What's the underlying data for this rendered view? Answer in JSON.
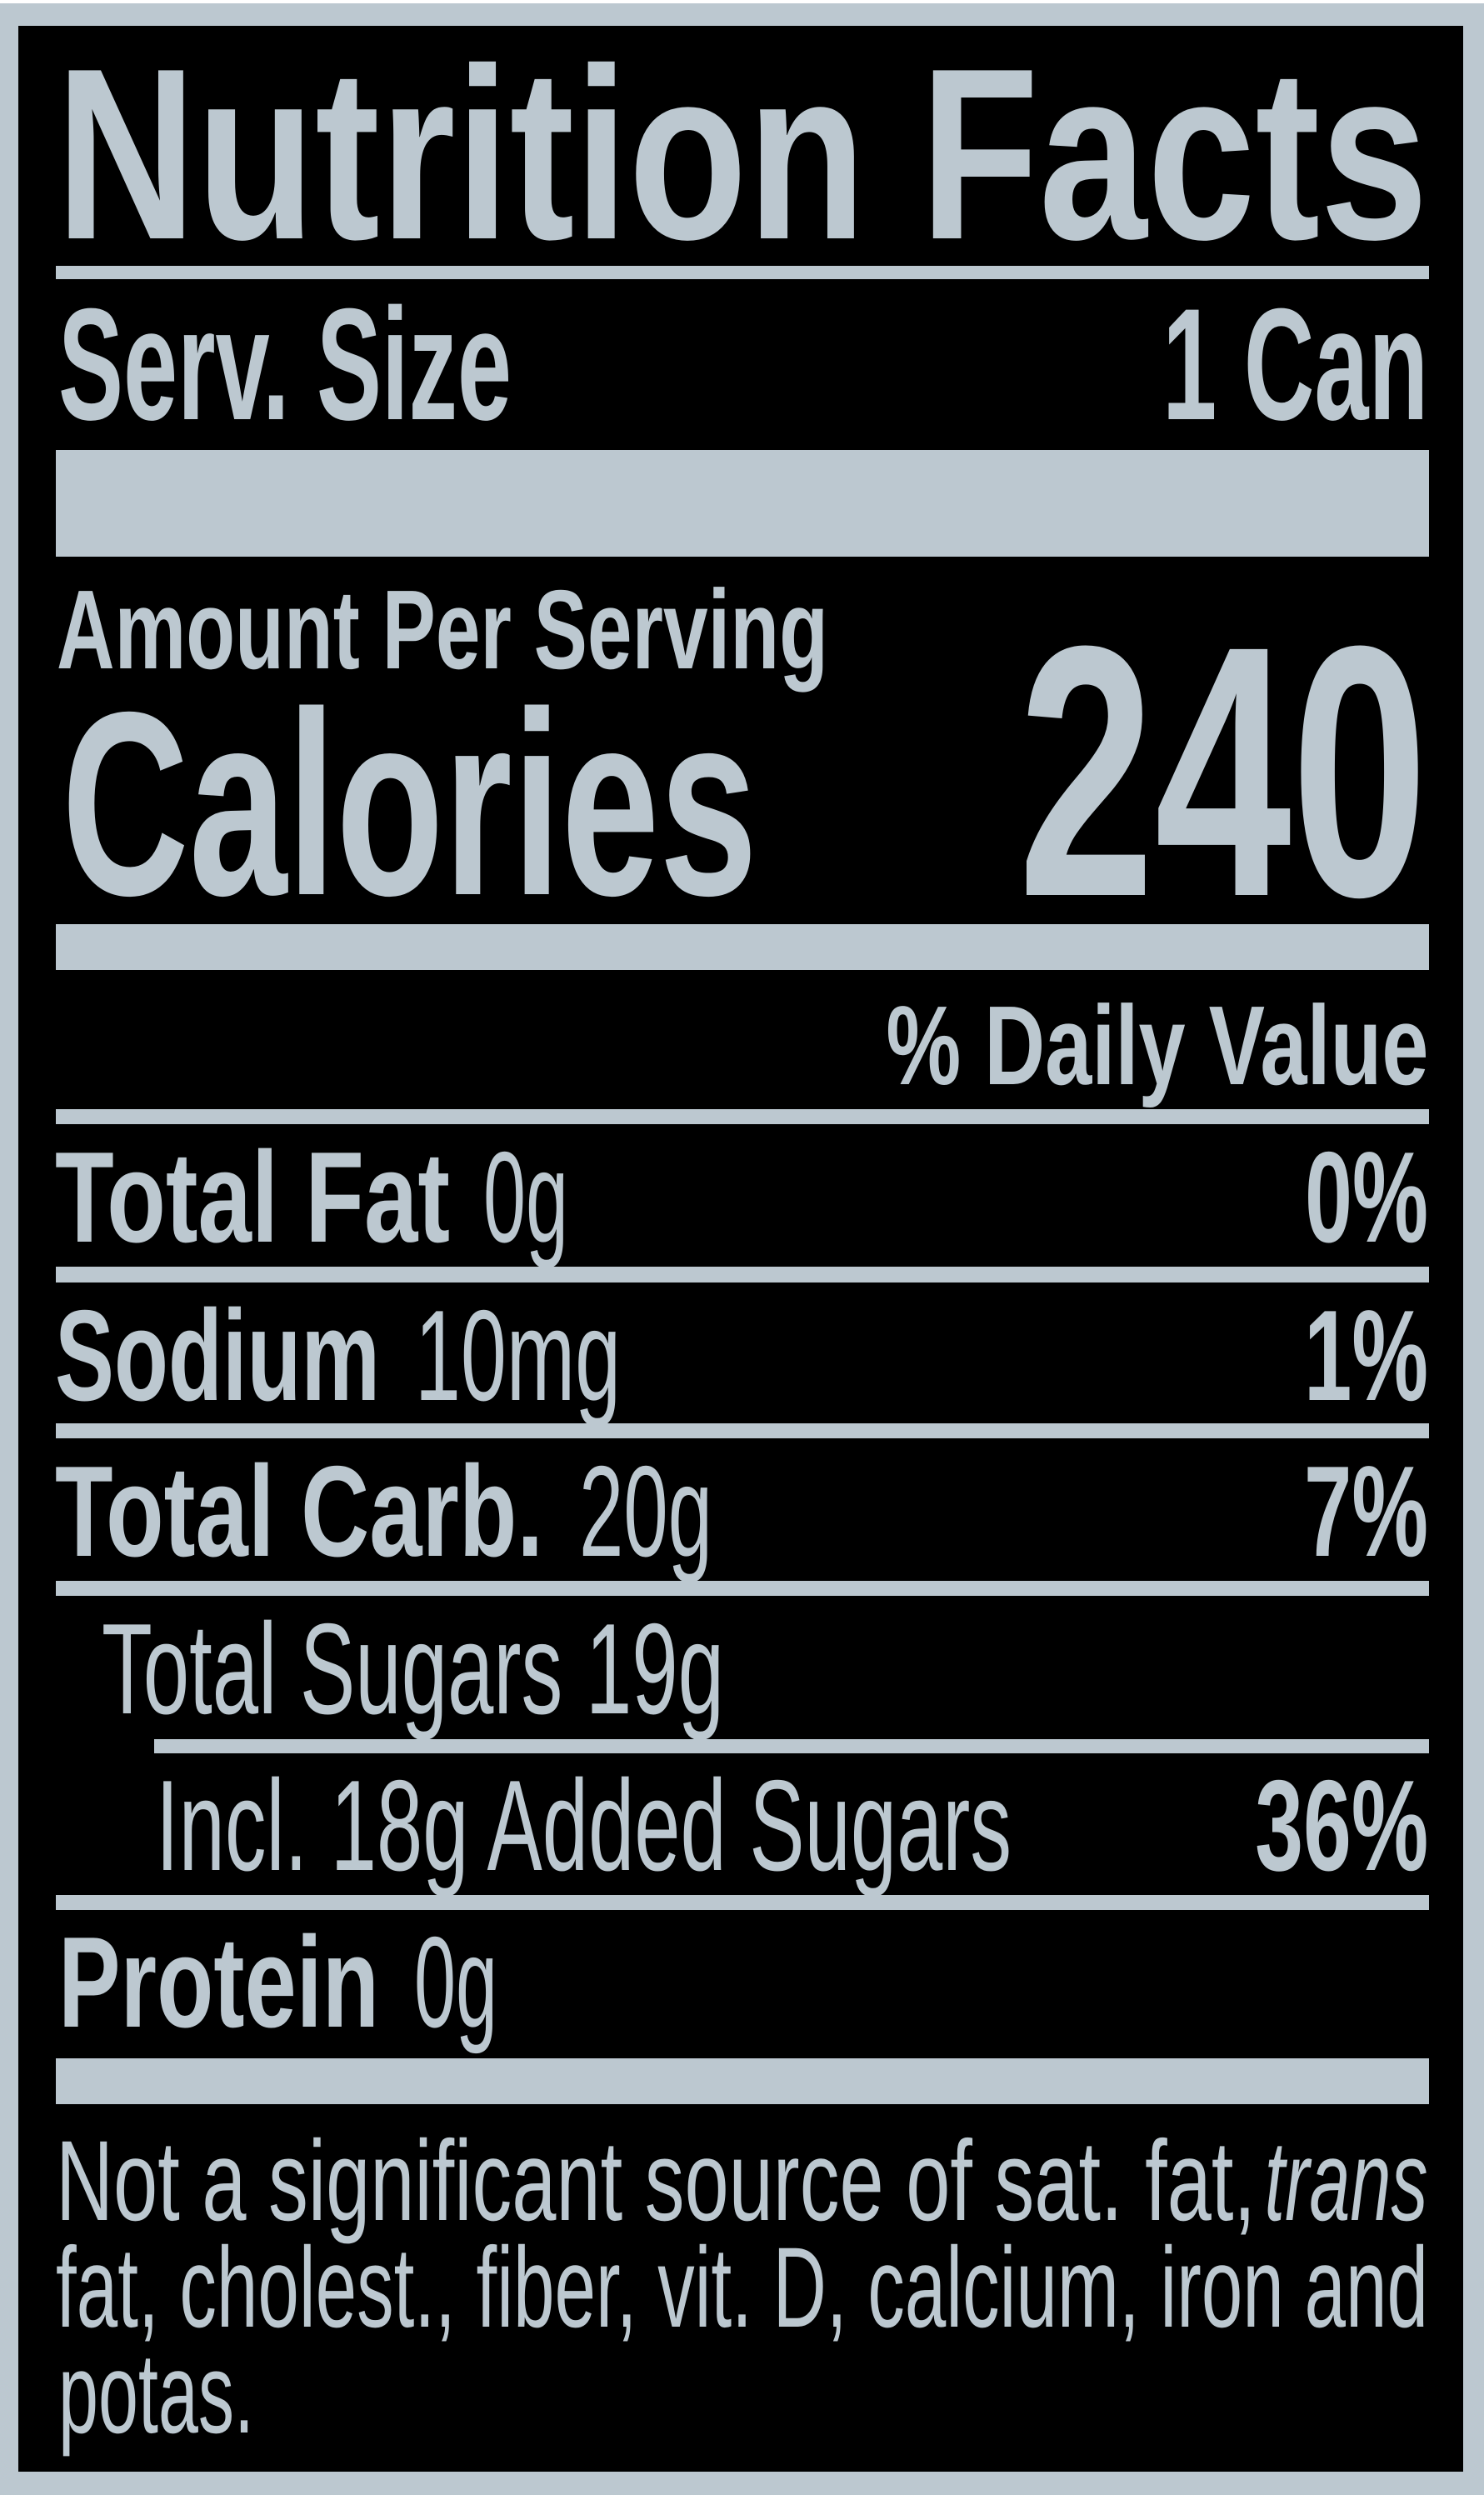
{
  "colors": {
    "label_fg": "#bcc8d0",
    "label_bg": "#000000"
  },
  "title": "Nutrition Facts",
  "serving": {
    "label": "Serv. Size",
    "value": "1 Can"
  },
  "amount_per_serving": "Amount Per Serving",
  "calories": {
    "label": "Calories",
    "value": "240"
  },
  "daily_value_header": "% Daily Value",
  "nutrients": [
    {
      "name": "Total Fat",
      "amount": "0g",
      "dv": "0%"
    },
    {
      "name": "Sodium",
      "amount": "10mg",
      "dv": "1%"
    },
    {
      "name": "Total Carb.",
      "amount": "20g",
      "dv": "7%"
    },
    {
      "name": "Total Sugars 19g"
    },
    {
      "name": "Incl. 18g Added Sugars",
      "dv": "36%"
    },
    {
      "name": "Protein",
      "amount": "0g"
    }
  ],
  "footnote": {
    "line1": "Not a significant source of sat. fat,",
    "line1_italic": "trans",
    "line2": "fat, cholest., fiber, vit. D, calcium, iron and",
    "line3": "potas."
  }
}
